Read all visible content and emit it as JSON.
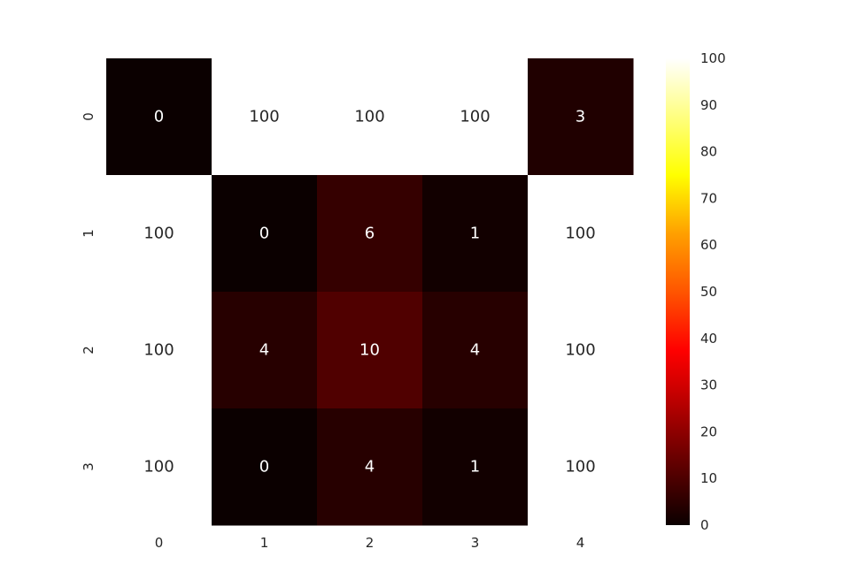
{
  "chart_data": {
    "type": "heatmap",
    "title": "",
    "xlabel": "",
    "ylabel": "",
    "x_categories": [
      "0",
      "1",
      "2",
      "3",
      "4"
    ],
    "y_categories": [
      "0",
      "1",
      "2",
      "3"
    ],
    "values": [
      [
        0,
        100,
        100,
        100,
        3
      ],
      [
        100,
        0,
        6,
        1,
        100
      ],
      [
        100,
        4,
        10,
        4,
        100
      ],
      [
        100,
        0,
        4,
        1,
        100
      ]
    ],
    "annotations": true,
    "colormap": "hot",
    "colorbar": {
      "min": 0,
      "max": 100,
      "ticks": [
        0,
        10,
        20,
        30,
        40,
        50,
        60,
        70,
        80,
        90,
        100
      ]
    },
    "grid": false
  }
}
